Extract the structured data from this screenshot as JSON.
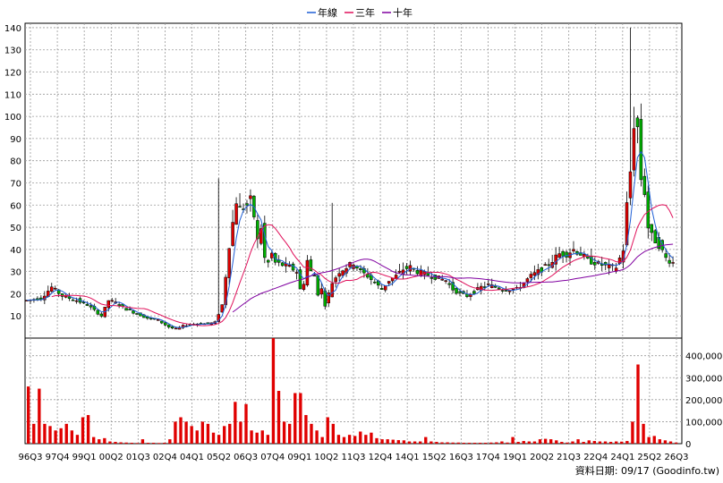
{
  "legend": [
    {
      "label": "年線",
      "color": "#1f5fd6"
    },
    {
      "label": "三年",
      "color": "#e0105a"
    },
    {
      "label": "十年",
      "color": "#8000a0"
    }
  ],
  "footer": "資料日期: 09/17  (Goodinfo.tw)",
  "chart_data": [
    {
      "type": "candlestick",
      "title": "",
      "y_ticks": [
        10,
        20,
        30,
        40,
        50,
        60,
        70,
        80,
        90,
        100,
        110,
        120,
        130,
        140
      ],
      "ylim": [
        0,
        142
      ],
      "x_tick_labels": [
        "96Q3",
        "97Q4",
        "99Q1",
        "00Q2",
        "01Q3",
        "02Q4",
        "04Q1",
        "05Q2",
        "06Q3",
        "07Q4",
        "09Q1",
        "10Q2",
        "11Q3",
        "12Q4",
        "14Q1",
        "15Q2",
        "16Q3",
        "17Q4",
        "19Q1",
        "20Q2",
        "21Q3",
        "22Q4",
        "24Q1",
        "25Q2",
        "26Q3"
      ],
      "up_color": "#e00000",
      "down_color": "#00b000",
      "close_path": [
        [
          0,
          17
        ],
        [
          4,
          18
        ],
        [
          7,
          23
        ],
        [
          10,
          19
        ],
        [
          14,
          17
        ],
        [
          17,
          15
        ],
        [
          21,
          10
        ],
        [
          23,
          17
        ],
        [
          25,
          16
        ],
        [
          28,
          13
        ],
        [
          31,
          11
        ],
        [
          34,
          9
        ],
        [
          37,
          8
        ],
        [
          40,
          5
        ],
        [
          42,
          4
        ],
        [
          45,
          6
        ],
        [
          48,
          6.5
        ],
        [
          51,
          6.5
        ],
        [
          53,
          7
        ],
        [
          55,
          15
        ],
        [
          56,
          28
        ],
        [
          57,
          42
        ],
        [
          58,
          52
        ],
        [
          59,
          62
        ],
        [
          60,
          58
        ],
        [
          62,
          60
        ],
        [
          63,
          62
        ],
        [
          64,
          55
        ],
        [
          65,
          44
        ],
        [
          66,
          50
        ],
        [
          67,
          36
        ],
        [
          68,
          34
        ],
        [
          69,
          38
        ],
        [
          70,
          34
        ],
        [
          72,
          33
        ],
        [
          74,
          32
        ],
        [
          76,
          30
        ],
        [
          77,
          22
        ],
        [
          78,
          25
        ],
        [
          79,
          35
        ],
        [
          80,
          30
        ],
        [
          81,
          28
        ],
        [
          82,
          20
        ],
        [
          83,
          22
        ],
        [
          84,
          15
        ],
        [
          85,
          20
        ],
        [
          86,
          25
        ],
        [
          88,
          30
        ],
        [
          90,
          32
        ],
        [
          92,
          34
        ],
        [
          94,
          30
        ],
        [
          96,
          28
        ],
        [
          98,
          25
        ],
        [
          100,
          22
        ],
        [
          102,
          26
        ],
        [
          104,
          28
        ],
        [
          106,
          31
        ],
        [
          108,
          32
        ],
        [
          110,
          30
        ],
        [
          112,
          29
        ],
        [
          114,
          28
        ],
        [
          116,
          27
        ],
        [
          118,
          26
        ],
        [
          120,
          22
        ],
        [
          122,
          20
        ],
        [
          124,
          19
        ],
        [
          126,
          21
        ],
        [
          128,
          23
        ],
        [
          130,
          24
        ],
        [
          132,
          23
        ],
        [
          134,
          22
        ],
        [
          136,
          22
        ],
        [
          138,
          22
        ],
        [
          140,
          25
        ],
        [
          142,
          28
        ],
        [
          144,
          30
        ],
        [
          146,
          32
        ],
        [
          148,
          35
        ],
        [
          150,
          38
        ],
        [
          152,
          38
        ],
        [
          154,
          40
        ],
        [
          156,
          38
        ],
        [
          158,
          35
        ],
        [
          160,
          34
        ],
        [
          162,
          33
        ],
        [
          164,
          32
        ],
        [
          166,
          32
        ],
        [
          168,
          40
        ],
        [
          169,
          60
        ],
        [
          170,
          75
        ],
        [
          171,
          97
        ],
        [
          172,
          95
        ],
        [
          173,
          72
        ],
        [
          174,
          66
        ],
        [
          175,
          50
        ],
        [
          176,
          46
        ],
        [
          178,
          42
        ],
        [
          180,
          36
        ],
        [
          182,
          34
        ]
      ],
      "price_max": 140,
      "price_min": 4,
      "overlays": [
        {
          "name": "年線",
          "color": "#1f5fd6"
        },
        {
          "name": "三年",
          "color": "#e0105a"
        },
        {
          "name": "十年",
          "color": "#8000a0"
        }
      ]
    },
    {
      "type": "bar",
      "title": "",
      "y_ticks": [
        0,
        100000,
        200000,
        300000,
        400000
      ],
      "y_tick_labels": [
        "0",
        "100,000",
        "200,000",
        "300,000",
        "400,000"
      ],
      "ylim": [
        0,
        480000
      ],
      "bar_color": "#e00000",
      "values": [
        260000,
        90000,
        250000,
        90000,
        80000,
        60000,
        70000,
        90000,
        60000,
        40000,
        120000,
        130000,
        30000,
        20000,
        25000,
        10000,
        8000,
        6000,
        5000,
        4000,
        3000,
        20000,
        4000,
        4000,
        3000,
        4000,
        20000,
        100000,
        120000,
        100000,
        80000,
        60000,
        100000,
        90000,
        50000,
        40000,
        80000,
        90000,
        190000,
        100000,
        180000,
        60000,
        50000,
        60000,
        40000,
        480000,
        240000,
        100000,
        90000,
        230000,
        230000,
        130000,
        90000,
        60000,
        30000,
        120000,
        90000,
        40000,
        30000,
        40000,
        35000,
        55000,
        40000,
        50000,
        25000,
        20000,
        20000,
        18000,
        16000,
        15000,
        10000,
        10000,
        10000,
        30000,
        10000,
        8000,
        6000,
        6000,
        5000,
        5000,
        4000,
        4000,
        4000,
        4000,
        4000,
        5000,
        6000,
        10000,
        5000,
        30000,
        8000,
        12000,
        10000,
        10000,
        20000,
        22000,
        20000,
        15000,
        8000,
        5000,
        10000,
        20000,
        8000,
        15000,
        12000,
        10000,
        10000,
        8000,
        10000,
        9000,
        12000,
        100000,
        360000,
        90000,
        30000,
        35000,
        20000,
        15000,
        10000,
        5000
      ]
    }
  ]
}
